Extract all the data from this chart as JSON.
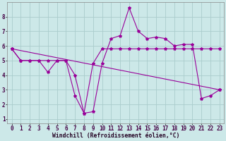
{
  "xlabel": "Windchill (Refroidissement éolien,°C)",
  "background_color": "#cce8e8",
  "line_color": "#990099",
  "grid_color": "#aacccc",
  "xlim": [
    -0.5,
    23.5
  ],
  "ylim": [
    0.7,
    9.0
  ],
  "xticks": [
    0,
    1,
    2,
    3,
    4,
    5,
    6,
    7,
    8,
    9,
    10,
    11,
    12,
    13,
    14,
    15,
    16,
    17,
    18,
    19,
    20,
    21,
    22,
    23
  ],
  "yticks": [
    1,
    2,
    3,
    4,
    5,
    6,
    7,
    8
  ],
  "line1_x": [
    0,
    1,
    2,
    3,
    4,
    5,
    6,
    7,
    8,
    9,
    10,
    11,
    12,
    13,
    14,
    15,
    16,
    17,
    18,
    19,
    20,
    21,
    22,
    23
  ],
  "line1_y": [
    5.8,
    5.0,
    5.0,
    5.0,
    4.2,
    5.0,
    5.0,
    4.0,
    1.4,
    1.5,
    4.8,
    6.5,
    6.7,
    8.6,
    7.0,
    6.5,
    6.6,
    6.5,
    6.0,
    6.1,
    6.1,
    2.4,
    2.6,
    3.0
  ],
  "line2_x": [
    0,
    1,
    2,
    3,
    4,
    5,
    6,
    7,
    8,
    9,
    10,
    11,
    12,
    13,
    14,
    15,
    16,
    17,
    18,
    19,
    20,
    21,
    22,
    23
  ],
  "line2_y": [
    5.8,
    5.0,
    5.0,
    5.0,
    5.0,
    5.0,
    5.0,
    2.6,
    1.4,
    4.8,
    5.8,
    5.8,
    5.8,
    5.8,
    5.8,
    5.8,
    5.8,
    5.8,
    5.8,
    5.8,
    5.8,
    5.8,
    5.8,
    5.8
  ],
  "line3_x": [
    0,
    23
  ],
  "line3_y": [
    5.8,
    3.0
  ]
}
